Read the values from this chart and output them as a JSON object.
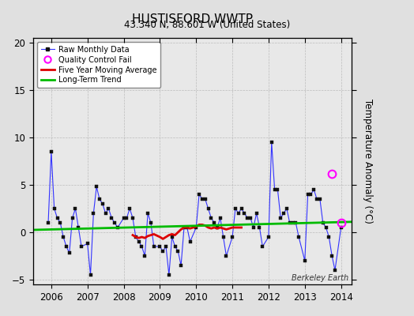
{
  "title": "HUSTISFORD WWTP",
  "subtitle": "43.340 N, 88.601 W (United States)",
  "ylabel": "Temperature Anomaly (°C)",
  "attribution": "Berkeley Earth",
  "ylim": [
    -5.5,
    20.5
  ],
  "yticks": [
    -5,
    0,
    5,
    10,
    15,
    20
  ],
  "xlim": [
    2005.5,
    2014.3
  ],
  "background_color": "#e0e0e0",
  "plot_bg_color": "#e8e8e8",
  "raw_color": "#3333ff",
  "ma_color": "#dd0000",
  "trend_color": "#00bb00",
  "qc_color": "#ff00ff",
  "raw_data": {
    "times": [
      2005.917,
      2006.0,
      2006.083,
      2006.167,
      2006.25,
      2006.333,
      2006.417,
      2006.5,
      2006.583,
      2006.667,
      2006.75,
      2006.833,
      2007.0,
      2007.083,
      2007.167,
      2007.25,
      2007.333,
      2007.417,
      2007.5,
      2007.583,
      2007.667,
      2007.75,
      2007.833,
      2008.0,
      2008.083,
      2008.167,
      2008.25,
      2008.333,
      2008.417,
      2008.5,
      2008.583,
      2008.667,
      2008.75,
      2008.833,
      2009.0,
      2009.083,
      2009.167,
      2009.25,
      2009.333,
      2009.417,
      2009.5,
      2009.583,
      2009.667,
      2009.75,
      2009.833,
      2010.0,
      2010.083,
      2010.167,
      2010.25,
      2010.333,
      2010.417,
      2010.5,
      2010.583,
      2010.667,
      2010.75,
      2010.833,
      2011.0,
      2011.083,
      2011.167,
      2011.25,
      2011.333,
      2011.417,
      2011.5,
      2011.583,
      2011.667,
      2011.75,
      2011.833,
      2012.0,
      2012.083,
      2012.167,
      2012.25,
      2012.333,
      2012.417,
      2012.5,
      2012.583,
      2012.667,
      2012.75,
      2012.833,
      2013.0,
      2013.083,
      2013.167,
      2013.25,
      2013.333,
      2013.417,
      2013.5,
      2013.583,
      2013.667,
      2013.75,
      2013.833,
      2014.0
    ],
    "values": [
      1.0,
      8.5,
      2.5,
      1.5,
      1.0,
      -0.5,
      -1.5,
      -2.2,
      1.5,
      2.5,
      0.5,
      -1.5,
      -1.2,
      -4.5,
      2.0,
      4.8,
      3.5,
      3.0,
      2.0,
      2.5,
      1.5,
      1.0,
      0.5,
      1.5,
      1.5,
      2.5,
      1.5,
      -0.5,
      -1.0,
      -1.5,
      -2.5,
      2.0,
      1.0,
      -1.5,
      -1.5,
      -2.0,
      -1.5,
      -4.5,
      -0.5,
      -1.5,
      -2.0,
      -3.5,
      0.5,
      0.5,
      -1.0,
      0.5,
      4.0,
      3.5,
      3.5,
      2.5,
      1.5,
      1.0,
      0.5,
      1.5,
      -0.5,
      -2.5,
      -0.5,
      2.5,
      2.0,
      2.5,
      2.0,
      1.5,
      1.5,
      0.5,
      2.0,
      0.5,
      -1.5,
      -0.5,
      9.5,
      4.5,
      4.5,
      1.5,
      2.0,
      2.5,
      1.0,
      1.0,
      1.0,
      -0.5,
      -3.0,
      4.0,
      4.0,
      4.5,
      3.5,
      3.5,
      1.0,
      0.5,
      -0.5,
      -2.5,
      -4.0,
      0.5
    ]
  },
  "ma_data": {
    "times": [
      2008.25,
      2008.333,
      2008.417,
      2008.5,
      2008.583,
      2008.667,
      2008.75,
      2008.833,
      2009.0,
      2009.083,
      2009.167,
      2009.25,
      2009.333,
      2009.417,
      2009.5,
      2009.583,
      2009.667,
      2009.75,
      2009.833,
      2010.0,
      2010.083,
      2010.167,
      2010.25,
      2010.333,
      2010.417,
      2010.5,
      2010.583,
      2010.667,
      2010.75,
      2010.833,
      2011.0,
      2011.083,
      2011.167,
      2011.25
    ],
    "values": [
      -0.3,
      -0.5,
      -0.6,
      -0.5,
      -0.6,
      -0.4,
      -0.3,
      -0.2,
      -0.5,
      -0.7,
      -0.5,
      -0.3,
      -0.2,
      -0.3,
      0.0,
      0.3,
      0.5,
      0.5,
      0.4,
      0.6,
      0.8,
      0.8,
      0.7,
      0.5,
      0.4,
      0.5,
      0.4,
      0.5,
      0.4,
      0.3,
      0.5,
      0.5,
      0.5,
      0.5
    ]
  },
  "trend_data": {
    "times": [
      2005.5,
      2014.3
    ],
    "values": [
      0.25,
      1.1
    ]
  },
  "qc_points": [
    {
      "time": 2013.75,
      "value": 6.2
    },
    {
      "time": 2014.0,
      "value": 1.0
    }
  ],
  "xticks": [
    2006,
    2007,
    2008,
    2009,
    2010,
    2011,
    2012,
    2013,
    2014
  ]
}
